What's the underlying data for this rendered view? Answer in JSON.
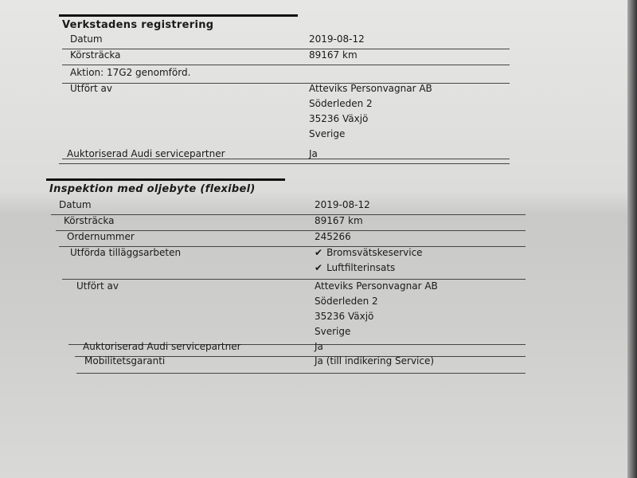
{
  "sections": [
    {
      "title": "Verkstadens registrering",
      "rows": [
        {
          "label": "Datum",
          "value": [
            "2019-08-12"
          ]
        },
        {
          "label": "Körsträcka",
          "value": [
            "89167 km"
          ]
        },
        {
          "label": "Aktion: 17G2 genomförd.",
          "value": []
        },
        {
          "label": "Utfört av",
          "value": [
            "Atteviks Personvagnar AB",
            "Söderleden 2",
            "35236 Växjö",
            "Sverige"
          ]
        },
        {
          "label": "Auktoriserad Audi servicepartner",
          "value": [
            "Ja"
          ]
        }
      ]
    },
    {
      "title": "Inspektion med oljebyte (flexibel)",
      "rows": [
        {
          "label": "Datum",
          "value": [
            "2019-08-12"
          ]
        },
        {
          "label": "Körsträcka",
          "value": [
            "89167 km"
          ]
        },
        {
          "label": "Ordernummer",
          "value": [
            "245266"
          ]
        },
        {
          "label": "Utförda tilläggsarbeten",
          "value": [
            "Bromsvätskeservice",
            "Luftfilterinsats"
          ],
          "checked": true
        },
        {
          "label": "Utfört av",
          "value": [
            "Atteviks Personvagnar AB",
            "Söderleden 2",
            "35236 Växjö",
            "Sverige"
          ]
        },
        {
          "label": "Auktoriserad Audi servicepartner",
          "value": [
            "Ja"
          ]
        },
        {
          "label": "Mobilitetsgaranti",
          "value": [
            "Ja (till indikering Service)"
          ]
        }
      ]
    }
  ],
  "icons": {
    "check": "check-icon"
  }
}
